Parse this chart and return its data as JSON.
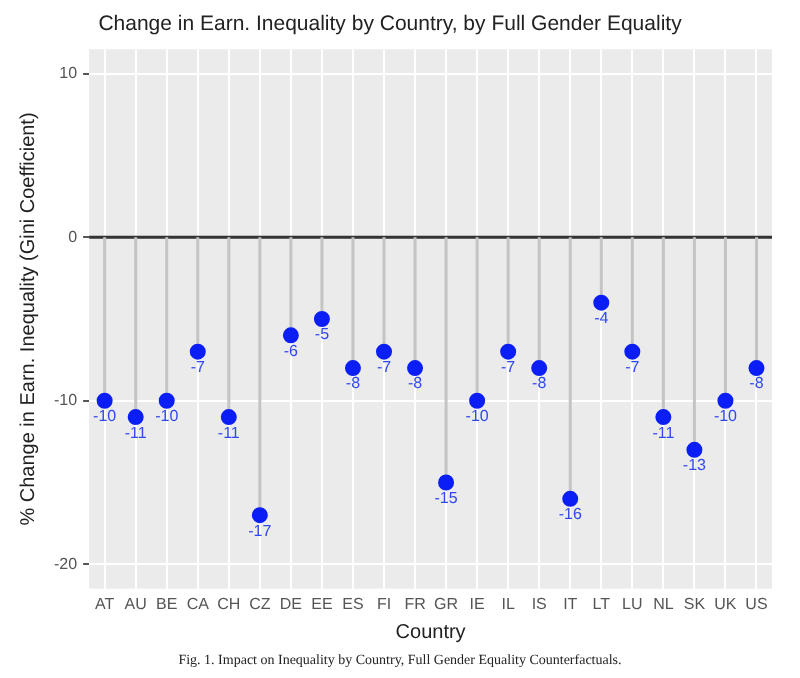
{
  "chart_data": {
    "type": "lollipop",
    "title": "Change in Earn. Inequality by Country, by Full Gender Equality",
    "xlabel": "Country",
    "ylabel": "% Change in Earn. Inequality (Gini Coefficient)",
    "categories": [
      "AT",
      "AU",
      "BE",
      "CA",
      "CH",
      "CZ",
      "DE",
      "EE",
      "ES",
      "FI",
      "FR",
      "GR",
      "IE",
      "IL",
      "IS",
      "IT",
      "LT",
      "LU",
      "NL",
      "SK",
      "UK",
      "US"
    ],
    "values": [
      -10,
      -11,
      -10,
      -7,
      -11,
      -17,
      -6,
      -5,
      -8,
      -7,
      -8,
      -15,
      -10,
      -7,
      -8,
      -16,
      -4,
      -7,
      -11,
      -13,
      -10,
      -8
    ],
    "color": "#0a1ef5",
    "data_labels": true,
    "ylim": [
      -21.5,
      11.5
    ],
    "yticks": [
      -20,
      -10,
      0,
      10
    ],
    "grid": true,
    "legend": false,
    "ref_lines": [
      {
        "axis": "y",
        "value": 0,
        "color": "#333333"
      }
    ],
    "annotations": [
      "Fig. 1. Impact on Inequality by Country, Full Gender Equality Counterfactuals."
    ]
  }
}
